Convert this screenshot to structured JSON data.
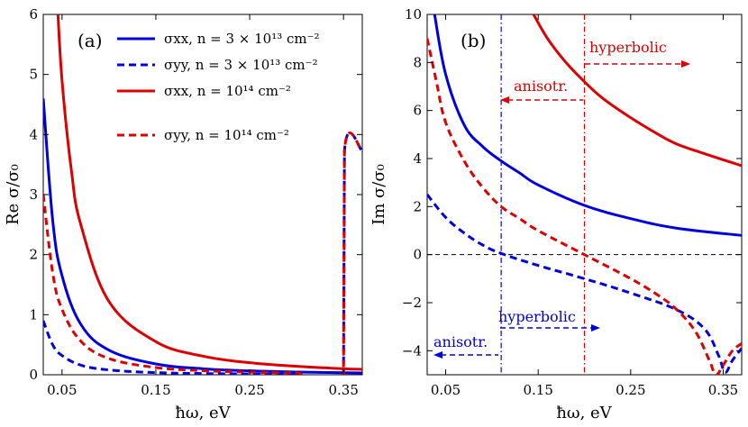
{
  "chart_data": [
    {
      "type": "line",
      "panel_label": "(a)",
      "xlabel": "ħω, eV",
      "ylabel": "Re σ/σ₀",
      "xlim": [
        0.03,
        0.37
      ],
      "ylim": [
        0,
        6
      ],
      "xticks": [
        "0.05",
        "0.15",
        "0.25",
        "0.35"
      ],
      "yticks": [
        "0",
        "1",
        "2",
        "3",
        "4",
        "5",
        "6"
      ],
      "legend": [
        "σxx, n = 3 × 10¹³ cm⁻²",
        "σyy, n = 3 × 10¹³ cm⁻²",
        "σxx, n = 10¹⁴ cm⁻²",
        "σyy, n = 10¹⁴ cm⁻²"
      ],
      "series": [
        {
          "name": "σxx, n = 3 × 10¹³ cm⁻²",
          "color": "#0000dd",
          "dash": "solid",
          "x": [
            0.03,
            0.04,
            0.05,
            0.07,
            0.1,
            0.15,
            0.2,
            0.25,
            0.3,
            0.35,
            0.37
          ],
          "y": [
            4.6,
            2.58,
            1.65,
            0.84,
            0.41,
            0.18,
            0.1,
            0.065,
            0.045,
            0.033,
            0.03
          ]
        },
        {
          "name": "σyy, n = 3 × 10¹³ cm⁻²",
          "color": "#0000dd",
          "dash": "dashed",
          "x": [
            0.03,
            0.04,
            0.05,
            0.07,
            0.1,
            0.15,
            0.2,
            0.25,
            0.3,
            0.35,
            0.351,
            0.37
          ],
          "y": [
            0.9,
            0.5,
            0.32,
            0.16,
            0.08,
            0.035,
            0.02,
            0.013,
            0.009,
            0.007,
            3.73,
            3.73
          ]
        },
        {
          "name": "σxx, n = 10¹⁴ cm⁻²",
          "color": "#dd0000",
          "dash": "solid",
          "x": [
            0.045,
            0.05,
            0.06,
            0.07,
            0.1,
            0.15,
            0.2,
            0.25,
            0.3,
            0.35,
            0.37
          ],
          "y": [
            6.2,
            4.9,
            3.4,
            2.5,
            1.22,
            0.55,
            0.31,
            0.2,
            0.14,
            0.1,
            0.09
          ]
        },
        {
          "name": "σyy, n = 10¹⁴ cm⁻²",
          "color": "#dd0000",
          "dash": "dashed",
          "x": [
            0.03,
            0.04,
            0.05,
            0.07,
            0.1,
            0.15,
            0.2,
            0.25,
            0.3,
            0.35,
            0.351,
            0.37
          ],
          "y": [
            3.0,
            1.7,
            1.09,
            0.56,
            0.27,
            0.12,
            0.068,
            0.044,
            0.03,
            0.022,
            3.73,
            3.73
          ]
        }
      ]
    },
    {
      "type": "line",
      "panel_label": "(b)",
      "xlabel": "ħω, eV",
      "ylabel": "Im σ/σ₀",
      "xlim": [
        0.03,
        0.37
      ],
      "ylim": [
        -5,
        10
      ],
      "xticks": [
        "0.05",
        "0.15",
        "0.25",
        "0.35"
      ],
      "yticks": [
        "−4",
        "−2",
        "0",
        "2",
        "4",
        "6",
        "8",
        "10"
      ],
      "vlines": [
        {
          "x": 0.11,
          "color": "#0000dd"
        },
        {
          "x": 0.2,
          "color": "#dd0000"
        }
      ],
      "annotations": [
        {
          "text": "hyperbolic",
          "color": "#dd0000"
        },
        {
          "text": "anisotr.",
          "color": "#dd0000"
        },
        {
          "text": "hyperbolic",
          "color": "#0000dd"
        },
        {
          "text": "anisotr.",
          "color": "#0000dd"
        }
      ],
      "series": [
        {
          "name": "σxx, n = 3 × 10¹³ cm⁻²",
          "color": "#0000dd",
          "dash": "solid",
          "x": [
            0.038,
            0.05,
            0.07,
            0.09,
            0.11,
            0.13,
            0.15,
            0.2,
            0.25,
            0.3,
            0.37
          ],
          "y": [
            10,
            7.5,
            5.4,
            4.5,
            3.9,
            3.4,
            2.9,
            2.05,
            1.5,
            1.1,
            0.8
          ]
        },
        {
          "name": "σyy, n = 3 × 10¹³ cm⁻²",
          "color": "#0000dd",
          "dash": "dashed",
          "x": [
            0.03,
            0.05,
            0.07,
            0.09,
            0.11,
            0.15,
            0.2,
            0.25,
            0.3,
            0.33,
            0.345,
            0.352,
            0.36,
            0.37
          ],
          "y": [
            2.5,
            1.55,
            0.9,
            0.4,
            0.05,
            -0.45,
            -1.0,
            -1.6,
            -2.3,
            -3.1,
            -4.2,
            -4.9,
            -4.4,
            -3.9
          ]
        },
        {
          "name": "σxx, n = 10¹⁴ cm⁻²",
          "color": "#dd0000",
          "dash": "solid",
          "x": [
            0.145,
            0.16,
            0.18,
            0.2,
            0.22,
            0.25,
            0.28,
            0.3,
            0.33,
            0.37
          ],
          "y": [
            10,
            9.0,
            8.0,
            7.2,
            6.5,
            5.7,
            5.0,
            4.6,
            4.2,
            3.7
          ]
        },
        {
          "name": "σyy, n = 10¹⁴ cm⁻²",
          "color": "#dd0000",
          "dash": "dashed",
          "x": [
            0.03,
            0.04,
            0.05,
            0.07,
            0.09,
            0.11,
            0.13,
            0.15,
            0.2,
            0.25,
            0.28,
            0.3,
            0.32,
            0.335,
            0.342,
            0.35,
            0.36,
            0.37
          ],
          "y": [
            9.0,
            7.2,
            5.5,
            3.9,
            2.8,
            2.0,
            1.5,
            1.0,
            0.0,
            -1.0,
            -1.7,
            -2.3,
            -3.2,
            -4.4,
            -5.0,
            -4.6,
            -4.0,
            -3.7
          ]
        }
      ]
    }
  ]
}
